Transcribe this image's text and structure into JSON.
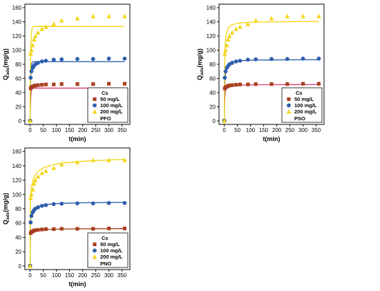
{
  "chart_data": [
    {
      "type": "scatter",
      "title": "",
      "xlabel": "t(min)",
      "ylabel": "Q_ads(mg/g)",
      "xlim": [
        -20,
        380
      ],
      "ylim": [
        -5,
        165
      ],
      "xticks": [
        0,
        50,
        100,
        150,
        200,
        250,
        300,
        350
      ],
      "yticks": [
        0,
        20,
        40,
        60,
        80,
        100,
        120,
        140,
        160
      ],
      "grid": false,
      "legend_title": "Cs",
      "legend_position": "bottom-right",
      "model_label": "PFO",
      "series": [
        {
          "name": "50 mg/L",
          "color": "#a83f1f",
          "line_color": "#e0457b",
          "marker": "square",
          "x": [
            0,
            2,
            5,
            10,
            15,
            20,
            30,
            45,
            60,
            90,
            120,
            180,
            240,
            300,
            360
          ],
          "y": [
            0,
            46,
            47.5,
            48.5,
            49.5,
            50,
            50.5,
            51,
            51.5,
            51.5,
            52,
            52,
            52,
            52.5,
            52.5
          ],
          "fit_x": [
            0,
            1,
            2,
            3,
            4,
            5,
            6,
            8,
            10,
            15,
            20,
            30,
            45,
            60,
            90,
            120,
            180,
            240,
            300,
            360
          ],
          "fit_y": [
            0,
            18.1,
            29.1,
            35.9,
            40,
            42.5,
            44.1,
            45.6,
            46.1,
            46.3,
            46.3,
            46.3,
            46.3,
            46.3,
            46.3,
            46.3,
            46.3,
            46.3,
            46.3,
            46.3
          ]
        },
        {
          "name": "100 mg/L",
          "color": "#2e5fae",
          "line_color": "#2e5fae",
          "marker": "circle",
          "x": [
            0,
            2,
            5,
            10,
            15,
            20,
            30,
            45,
            60,
            90,
            120,
            180,
            240,
            300,
            360
          ],
          "y": [
            0,
            61,
            70,
            75,
            78,
            80,
            82,
            84,
            85,
            86.5,
            87,
            87.5,
            87.5,
            88,
            88
          ],
          "fit_x": [
            0,
            1,
            2,
            3,
            4,
            5,
            6,
            8,
            10,
            15,
            20,
            30,
            45,
            60,
            90,
            120,
            180,
            240,
            300,
            360
          ],
          "fit_y": [
            0,
            33.3,
            53.4,
            65.5,
            72.8,
            77.2,
            79.8,
            82.4,
            83.3,
            83.7,
            83.7,
            83.7,
            83.7,
            83.7,
            83.7,
            83.7,
            83.7,
            83.7,
            83.7,
            83.7
          ]
        },
        {
          "name": "200 mg/L",
          "color": "#f4d61a",
          "line_color": "#f4d61a",
          "marker": "triangle",
          "x": [
            0,
            2,
            5,
            10,
            15,
            20,
            30,
            45,
            60,
            90,
            120,
            180,
            240,
            300,
            360
          ],
          "y": [
            0,
            95,
            100,
            107,
            115,
            120,
            125,
            130,
            133,
            137,
            142,
            145,
            148,
            148,
            148
          ],
          "fit_x": [
            0,
            1,
            2,
            3,
            4,
            5,
            6,
            8,
            10,
            15,
            20,
            30,
            45,
            60,
            90,
            120,
            180,
            240,
            300,
            360
          ],
          "fit_y": [
            0,
            52.5,
            84.5,
            103.9,
            115.6,
            122.8,
            127.1,
            131.1,
            132.6,
            133.4,
            133.5,
            133.5,
            133.5,
            133.5,
            133.5,
            133.5,
            133.5,
            133.5,
            133.5,
            133.5
          ]
        }
      ]
    },
    {
      "type": "scatter",
      "title": "",
      "xlabel": "t(min)",
      "ylabel": "Q_ads(mg/g)",
      "xlim": [
        -20,
        380
      ],
      "ylim": [
        -5,
        165
      ],
      "xticks": [
        0,
        50,
        100,
        150,
        200,
        250,
        300,
        350
      ],
      "yticks": [
        0,
        20,
        40,
        60,
        80,
        100,
        120,
        140,
        160
      ],
      "grid": false,
      "legend_title": "Cs",
      "legend_position": "bottom-right",
      "model_label": "PSO",
      "series": [
        {
          "name": "50 mg/L",
          "color": "#a83f1f",
          "line_color": "#e0457b",
          "marker": "square",
          "x": [
            0,
            2,
            5,
            10,
            15,
            20,
            30,
            45,
            60,
            90,
            120,
            180,
            240,
            300,
            360
          ],
          "y": [
            0,
            46,
            47.5,
            48.5,
            49.5,
            50,
            50.5,
            51,
            51.5,
            51.5,
            52,
            52,
            52,
            52.5,
            52.5
          ],
          "fit_x": [
            0,
            1,
            2,
            3,
            4,
            5,
            6,
            8,
            10,
            15,
            20,
            30,
            45,
            60,
            90,
            120,
            180,
            240,
            300,
            360
          ],
          "fit_y": [
            0,
            24.4,
            33.2,
            37.7,
            40.4,
            42.2,
            43.5,
            45.2,
            46.3,
            47.9,
            48.8,
            49.7,
            50.3,
            50.6,
            50.9,
            51.1,
            51.2,
            51.3,
            51.3,
            51.4
          ]
        },
        {
          "name": "100 mg/L",
          "color": "#2e5fae",
          "line_color": "#2e5fae",
          "marker": "circle",
          "x": [
            0,
            2,
            5,
            10,
            15,
            20,
            30,
            45,
            60,
            90,
            120,
            180,
            240,
            300,
            360
          ],
          "y": [
            0,
            61,
            70,
            75,
            78,
            80,
            82,
            84,
            85,
            86.5,
            87,
            87.5,
            87.5,
            88,
            88
          ],
          "fit_x": [
            0,
            1,
            2,
            3,
            4,
            5,
            6,
            8,
            10,
            15,
            20,
            30,
            45,
            60,
            90,
            120,
            180,
            240,
            300,
            360
          ],
          "fit_y": [
            0,
            35.8,
            51.0,
            59.3,
            64.5,
            68.1,
            70.7,
            74.3,
            76.6,
            79.8,
            81.5,
            83.2,
            84.4,
            85.0,
            85.6,
            85.9,
            86.1,
            86.3,
            86.4,
            86.4
          ]
        },
        {
          "name": "200 mg/L",
          "color": "#f4d61a",
          "line_color": "#f4d61a",
          "marker": "triangle",
          "x": [
            0,
            2,
            5,
            10,
            15,
            20,
            30,
            45,
            60,
            90,
            120,
            180,
            240,
            300,
            360
          ],
          "y": [
            0,
            95,
            100,
            107,
            115,
            120,
            125,
            130,
            133,
            137,
            142,
            145,
            148,
            148,
            148
          ],
          "fit_x": [
            0,
            1,
            2,
            3,
            4,
            5,
            6,
            8,
            10,
            15,
            20,
            30,
            45,
            60,
            90,
            120,
            180,
            240,
            300,
            360
          ],
          "fit_y": [
            0,
            63.7,
            88.2,
            101.0,
            108.9,
            114.3,
            118.1,
            123.2,
            126.5,
            131.1,
            133.5,
            135.9,
            137.5,
            138.3,
            139.2,
            139.6,
            140.0,
            140.2,
            140.4,
            140.5
          ]
        }
      ]
    },
    {
      "type": "scatter",
      "title": "",
      "xlabel": "t(min)",
      "ylabel": "Q_ads(mg/g)",
      "xlim": [
        -20,
        380
      ],
      "ylim": [
        -5,
        165
      ],
      "xticks": [
        0,
        50,
        100,
        150,
        200,
        250,
        300,
        350
      ],
      "yticks": [
        0,
        20,
        40,
        60,
        80,
        100,
        120,
        140,
        160
      ],
      "grid": false,
      "legend_title": "Cs",
      "legend_position": "bottom-right",
      "model_label": "PNO",
      "series": [
        {
          "name": "50 mg/L",
          "color": "#a83f1f",
          "line_color": "#a83f1f",
          "marker": "square",
          "x": [
            0,
            2,
            5,
            10,
            15,
            20,
            30,
            45,
            60,
            90,
            120,
            180,
            240,
            300,
            360
          ],
          "y": [
            0,
            46,
            47.5,
            48.5,
            49.5,
            50,
            50.5,
            51,
            51.5,
            51.5,
            52,
            52,
            52,
            52.5,
            52.5
          ],
          "fit_x": [
            0,
            1,
            2,
            3,
            5,
            10,
            15,
            20,
            30,
            45,
            60,
            90,
            120,
            180,
            240,
            300,
            360
          ],
          "fit_y": [
            0,
            44.0,
            45.6,
            46.5,
            47.5,
            48.7,
            49.3,
            49.7,
            50.2,
            50.7,
            51.0,
            51.4,
            51.6,
            51.9,
            52.1,
            52.2,
            52.3
          ]
        },
        {
          "name": "100 mg/L",
          "color": "#2e5fae",
          "line_color": "#2e5fae",
          "marker": "circle",
          "x": [
            0,
            2,
            5,
            10,
            15,
            20,
            30,
            45,
            60,
            90,
            120,
            180,
            240,
            300,
            360
          ],
          "y": [
            0,
            61,
            70,
            75,
            78,
            80,
            82,
            84,
            85,
            86.5,
            87,
            87.5,
            87.5,
            88,
            88
          ],
          "fit_x": [
            0,
            1,
            2,
            3,
            5,
            10,
            15,
            20,
            30,
            45,
            60,
            90,
            120,
            180,
            240,
            300,
            360
          ],
          "fit_y": [
            0,
            60.0,
            66.0,
            69.5,
            73.0,
            77.5,
            80.0,
            81.5,
            83.3,
            84.9,
            85.8,
            86.9,
            87.5,
            88.1,
            88.5,
            88.8,
            89.0
          ]
        },
        {
          "name": "200 mg/L",
          "color": "#f4d61a",
          "line_color": "#f4d61a",
          "marker": "triangle",
          "x": [
            0,
            2,
            5,
            10,
            15,
            20,
            30,
            45,
            60,
            90,
            120,
            180,
            240,
            300,
            360
          ],
          "y": [
            0,
            95,
            100,
            107,
            115,
            120,
            125,
            130,
            133,
            137,
            142,
            145,
            148,
            148,
            148
          ],
          "fit_x": [
            0,
            1,
            2,
            3,
            5,
            10,
            15,
            20,
            30,
            45,
            60,
            90,
            120,
            180,
            240,
            300,
            360
          ],
          "fit_y": [
            0,
            88.0,
            97.0,
            103.0,
            110.0,
            119.0,
            124.0,
            127.5,
            132.0,
            136.0,
            138.5,
            141.8,
            143.8,
            145.8,
            147.2,
            148.2,
            149.0
          ]
        }
      ]
    }
  ]
}
